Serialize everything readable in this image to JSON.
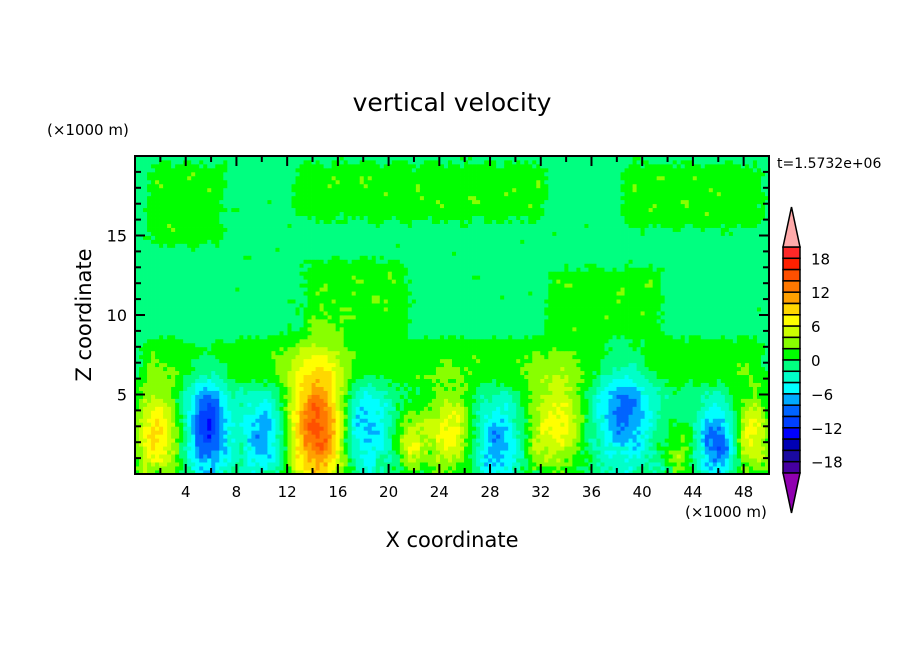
{
  "chart_data": {
    "type": "heatmap",
    "title": "vertical velocity",
    "xlabel": "X coordinate",
    "ylabel": "Z coordinate",
    "x_unit": "(×1000 m)",
    "y_unit": "(×1000 m)",
    "time_label": "t=1.5732e+06",
    "xlim": [
      0,
      50
    ],
    "ylim": [
      0,
      20
    ],
    "x_ticks": [
      4,
      8,
      12,
      16,
      20,
      24,
      28,
      32,
      36,
      40,
      44,
      48
    ],
    "y_ticks": [
      5,
      10,
      15
    ],
    "grid": false,
    "colorbar": {
      "levels_min": -20,
      "levels_max": 20,
      "step": 2,
      "tick_labels": [
        "18",
        "12",
        "6",
        "0",
        "−6",
        "−12",
        "−18"
      ],
      "tick_values": [
        18,
        12,
        6,
        0,
        -6,
        -12,
        -18
      ],
      "colors_top_to_bottom": [
        "#ff2828",
        "#ff2000",
        "#ff5000",
        "#ff7800",
        "#ffa000",
        "#ffd700",
        "#ffff00",
        "#ccff00",
        "#88ff00",
        "#00ff00",
        "#00ff80",
        "#00ffc8",
        "#00ffff",
        "#00aaff",
        "#0064ff",
        "#0040ff",
        "#0000ff",
        "#0000b4",
        "#1a0aa0",
        "#4600a0"
      ],
      "over_color": "#ffaaaa",
      "under_color": "#9000b0",
      "placement": "right"
    },
    "features": [
      {
        "x": 1.7,
        "z": 2.5,
        "peak": 9,
        "sx": 1.3,
        "sz": 2.0
      },
      {
        "x": 5.7,
        "z": 3.0,
        "peak": -11,
        "sx": 1.1,
        "sz": 2.2
      },
      {
        "x": 10.2,
        "z": 2.5,
        "peak": -7,
        "sx": 1.2,
        "sz": 1.8
      },
      {
        "x": 14.4,
        "z": 3.0,
        "peak": 16,
        "sx": 1.6,
        "sz": 2.8
      },
      {
        "x": 18.0,
        "z": 3.0,
        "peak": -7,
        "sx": 1.3,
        "sz": 2.0
      },
      {
        "x": 21.7,
        "z": 2.0,
        "peak": 6,
        "sx": 0.8,
        "sz": 1.3
      },
      {
        "x": 24.8,
        "z": 2.7,
        "peak": 8,
        "sx": 1.4,
        "sz": 1.8
      },
      {
        "x": 28.5,
        "z": 2.0,
        "peak": -7,
        "sx": 1.3,
        "sz": 1.8
      },
      {
        "x": 32.3,
        "z": 3.0,
        "peak": 6,
        "sx": 1.2,
        "sz": 2.2
      },
      {
        "x": 34.2,
        "z": 3.5,
        "peak": 5,
        "sx": 1.0,
        "sz": 2.0
      },
      {
        "x": 38.6,
        "z": 4.0,
        "peak": -8,
        "sx": 1.5,
        "sz": 2.2
      },
      {
        "x": 43.0,
        "z": 1.5,
        "peak": 4,
        "sx": 1.0,
        "sz": 1.2
      },
      {
        "x": 45.9,
        "z": 2.0,
        "peak": -9,
        "sx": 1.1,
        "sz": 1.6
      },
      {
        "x": 48.6,
        "z": 2.5,
        "peak": 8,
        "sx": 1.0,
        "sz": 1.8
      }
    ],
    "weak_updraft_regions": [
      {
        "x": [
          0.5,
          7.5
        ],
        "z": [
          14,
          20
        ]
      },
      {
        "x": [
          12,
          33
        ],
        "z": [
          15.5,
          20
        ]
      },
      {
        "x": [
          13,
          22
        ],
        "z": [
          8,
          14
        ]
      },
      {
        "x": [
          32,
          42
        ],
        "z": [
          8,
          13.5
        ]
      },
      {
        "x": [
          38,
          50
        ],
        "z": [
          15,
          20
        ]
      },
      {
        "x": [
          0,
          50
        ],
        "z": [
          5,
          9
        ]
      }
    ]
  }
}
